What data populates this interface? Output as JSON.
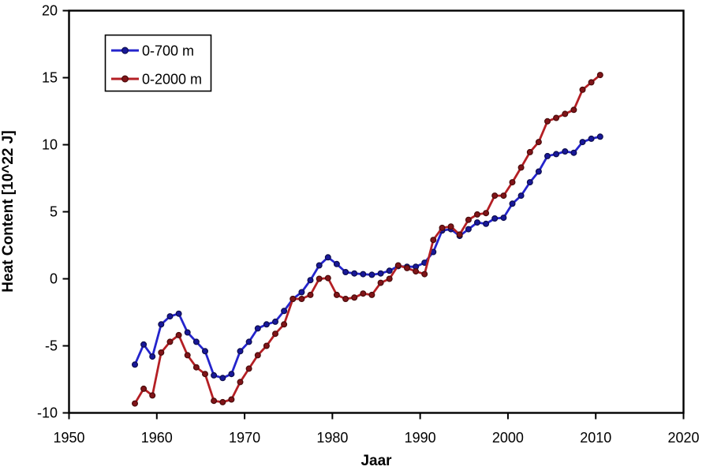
{
  "chart_data": {
    "type": "line",
    "title": "",
    "xlabel": "Jaar",
    "ylabel": "Heat Content [10^22 J]",
    "xlim": [
      1950,
      2020
    ],
    "ylim": [
      -10,
      20
    ],
    "x_ticks": [
      1950,
      1960,
      1970,
      1980,
      1990,
      2000,
      2010,
      2020
    ],
    "y_ticks": [
      -10,
      -5,
      0,
      5,
      10,
      15,
      20
    ],
    "grid": false,
    "legend_position": "top-left",
    "background": "#ffffff",
    "axis_color": "#000000",
    "x": [
      1957.5,
      1958.5,
      1959.5,
      1960.5,
      1961.5,
      1962.5,
      1963.5,
      1964.5,
      1965.5,
      1966.5,
      1967.5,
      1968.5,
      1969.5,
      1970.5,
      1971.5,
      1972.5,
      1973.5,
      1974.5,
      1975.5,
      1976.5,
      1977.5,
      1978.5,
      1979.5,
      1980.5,
      1981.5,
      1982.5,
      1983.5,
      1984.5,
      1985.5,
      1986.5,
      1987.5,
      1988.5,
      1989.5,
      1990.5,
      1991.5,
      1992.5,
      1993.5,
      1994.5,
      1995.5,
      1996.5,
      1997.5,
      1998.5,
      1999.5,
      2000.5,
      2001.5,
      2002.5,
      2003.5,
      2004.5,
      2005.5,
      2006.5,
      2007.5,
      2008.5,
      2009.5,
      2010.5
    ],
    "series": [
      {
        "name": "0-700 m",
        "color": "#2424cc",
        "marker_color": "#181899",
        "marker_edge": "#0d0d4d",
        "values": [
          -6.4,
          -4.9,
          -5.8,
          -3.4,
          -2.8,
          -2.6,
          -4.0,
          -4.7,
          -5.4,
          -7.2,
          -7.4,
          -7.1,
          -5.4,
          -4.7,
          -3.7,
          -3.4,
          -3.2,
          -2.4,
          -1.5,
          -1.0,
          -0.1,
          1.0,
          1.6,
          1.1,
          0.5,
          0.4,
          0.35,
          0.3,
          0.4,
          0.6,
          0.95,
          0.9,
          0.9,
          1.2,
          2.0,
          3.6,
          3.7,
          3.2,
          3.7,
          4.2,
          4.1,
          4.5,
          4.55,
          5.6,
          6.2,
          7.2,
          8.0,
          9.15,
          9.3,
          9.5,
          9.4,
          10.2,
          10.45,
          10.6
        ]
      },
      {
        "name": "0-2000 m",
        "color": "#b41f24",
        "marker_color": "#801418",
        "marker_edge": "#4a0b0b",
        "values": [
          -9.3,
          -8.2,
          -8.7,
          -5.5,
          -4.7,
          -4.2,
          -5.7,
          -6.6,
          -7.1,
          -9.1,
          -9.2,
          -9.0,
          -7.7,
          -6.7,
          -5.7,
          -5.0,
          -4.1,
          -3.4,
          -1.5,
          -1.5,
          -1.2,
          0.0,
          0.05,
          -1.2,
          -1.5,
          -1.4,
          -1.1,
          -1.2,
          -0.3,
          0.0,
          1.0,
          0.8,
          0.55,
          0.35,
          2.9,
          3.8,
          3.9,
          3.3,
          4.4,
          4.8,
          4.9,
          6.2,
          6.2,
          7.2,
          8.3,
          9.45,
          10.2,
          11.75,
          12.0,
          12.3,
          12.6,
          14.1,
          14.65,
          15.2
        ]
      }
    ]
  }
}
